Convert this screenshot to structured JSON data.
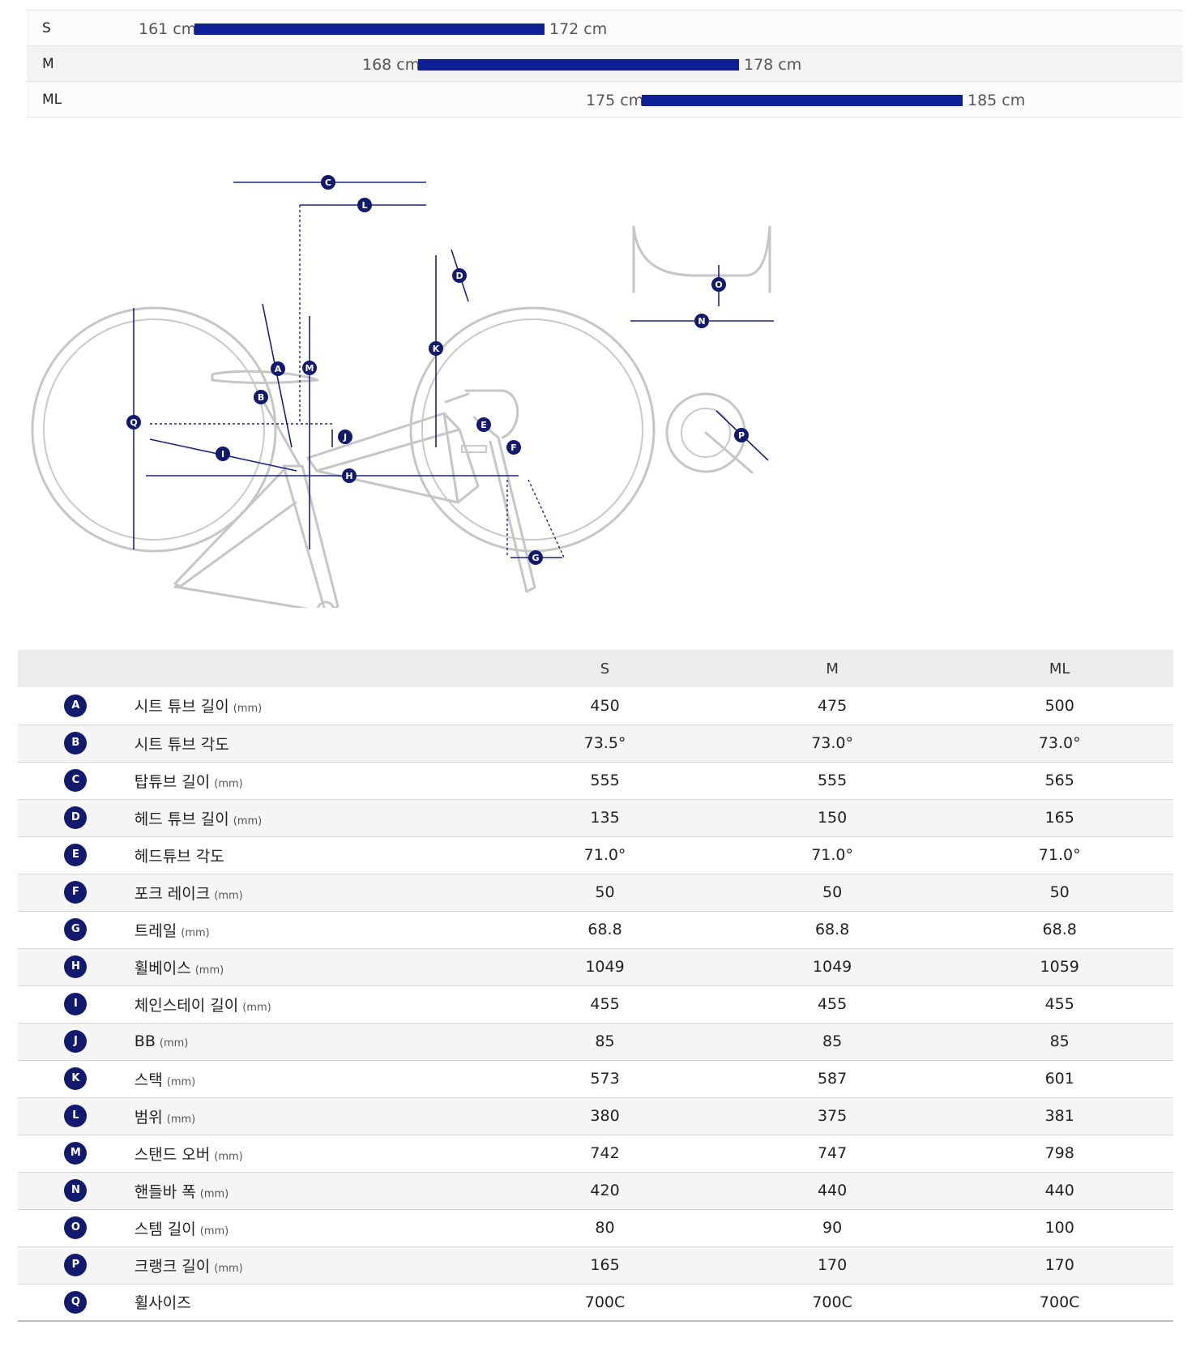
{
  "size_chart": [
    {
      "size": "S",
      "min": "161 cm",
      "max": "172 cm"
    },
    {
      "size": "M",
      "min": "168 cm",
      "max": "178 cm"
    },
    {
      "size": "ML",
      "min": "175 cm",
      "max": "185 cm"
    }
  ],
  "diagram_markers": [
    "A",
    "B",
    "C",
    "D",
    "E",
    "F",
    "G",
    "H",
    "I",
    "J",
    "K",
    "L",
    "M",
    "N",
    "O",
    "P",
    "Q"
  ],
  "geometry": {
    "columns": [
      "S",
      "M",
      "ML"
    ],
    "rows": [
      {
        "key": "A",
        "label": "시트 튜브 길이",
        "unit": "(mm)",
        "values": [
          "450",
          "475",
          "500"
        ]
      },
      {
        "key": "B",
        "label": "시트 튜브 각도",
        "unit": "",
        "values": [
          "73.5°",
          "73.0°",
          "73.0°"
        ]
      },
      {
        "key": "C",
        "label": "탑튜브 길이",
        "unit": "(mm)",
        "values": [
          "555",
          "555",
          "565"
        ]
      },
      {
        "key": "D",
        "label": "헤드 튜브 길이",
        "unit": "(mm)",
        "values": [
          "135",
          "150",
          "165"
        ]
      },
      {
        "key": "E",
        "label": "헤드튜브 각도",
        "unit": "",
        "values": [
          "71.0°",
          "71.0°",
          "71.0°"
        ]
      },
      {
        "key": "F",
        "label": "포크 레이크",
        "unit": "(mm)",
        "values": [
          "50",
          "50",
          "50"
        ]
      },
      {
        "key": "G",
        "label": "트레일",
        "unit": "(mm)",
        "values": [
          "68.8",
          "68.8",
          "68.8"
        ]
      },
      {
        "key": "H",
        "label": "휠베이스",
        "unit": "(mm)",
        "values": [
          "1049",
          "1049",
          "1059"
        ]
      },
      {
        "key": "I",
        "label": "체인스테이 길이",
        "unit": "(mm)",
        "values": [
          "455",
          "455",
          "455"
        ]
      },
      {
        "key": "J",
        "label": "BB",
        "unit": "(mm)",
        "values": [
          "85",
          "85",
          "85"
        ]
      },
      {
        "key": "K",
        "label": "스택",
        "unit": "(mm)",
        "values": [
          "573",
          "587",
          "601"
        ]
      },
      {
        "key": "L",
        "label": "범위",
        "unit": "(mm)",
        "values": [
          "380",
          "375",
          "381"
        ]
      },
      {
        "key": "M",
        "label": "스탠드 오버",
        "unit": "(mm)",
        "values": [
          "742",
          "747",
          "798"
        ]
      },
      {
        "key": "N",
        "label": "핸들바 폭",
        "unit": "(mm)",
        "values": [
          "420",
          "440",
          "440"
        ]
      },
      {
        "key": "O",
        "label": "스템 길이",
        "unit": "(mm)",
        "values": [
          "80",
          "90",
          "100"
        ]
      },
      {
        "key": "P",
        "label": "크랭크 길이",
        "unit": "(mm)",
        "values": [
          "165",
          "170",
          "170"
        ]
      },
      {
        "key": "Q",
        "label": "휠사이즈",
        "unit": "",
        "values": [
          "700C",
          "700C",
          "700C"
        ]
      }
    ]
  }
}
